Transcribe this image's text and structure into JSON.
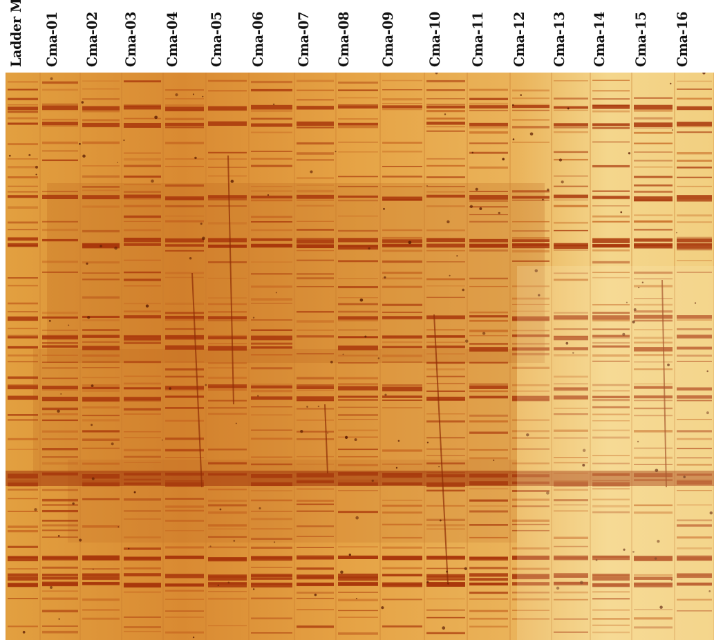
{
  "lane_labels": [
    "Ladder Mix",
    "Cma-01",
    "Cma-02",
    "Cma-03",
    "Cma-04",
    "Cma-05",
    "Cma-06",
    "Cma-07",
    "Cma-08",
    "Cma-09",
    "Cma-10",
    "Cma-11",
    "Cma-12",
    "Cma-13",
    "Cma-14",
    "Cma-15",
    "Cma-16"
  ],
  "colors": {
    "gel_background": "#e8a94a",
    "gel_background_light": "#f4d68c",
    "band_dark": "#a8360a",
    "band_mid": "#c4621e",
    "label_text": "#111111"
  }
}
